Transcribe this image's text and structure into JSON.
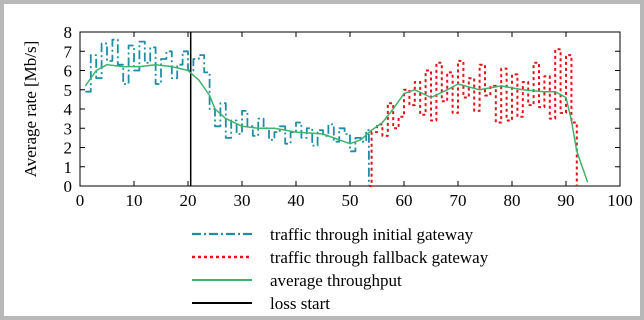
{
  "chart_data": {
    "type": "line",
    "title": "",
    "xlabel": "",
    "ylabel": "Average rate [Mb/s]",
    "xlim": [
      0,
      100
    ],
    "ylim": [
      0,
      8
    ],
    "xticks": [
      0,
      10,
      20,
      30,
      40,
      50,
      60,
      70,
      80,
      90,
      100
    ],
    "yticks": [
      0,
      1,
      2,
      3,
      4,
      5,
      6,
      7,
      8
    ],
    "grid": false,
    "legend_position": "below",
    "colors": {
      "initial": "#1f8ea3",
      "fallback": "#e3121b",
      "average": "#3fb36b",
      "loss": "#000000"
    },
    "series": [
      {
        "name": "traffic through initial gateway",
        "style": "dash-dot",
        "x": [
          1,
          2,
          3,
          4,
          5,
          6,
          7,
          8,
          9,
          10,
          11,
          12,
          13,
          14,
          15,
          16,
          17,
          18,
          19,
          20,
          21,
          22,
          23,
          24,
          25,
          26,
          27,
          28,
          29,
          30,
          31,
          32,
          33,
          34,
          35,
          36,
          37,
          38,
          39,
          40,
          41,
          42,
          43,
          44,
          45,
          46,
          47,
          48,
          49,
          50,
          51,
          52,
          53,
          53.5
        ],
        "values": [
          4.9,
          6.8,
          5.6,
          7.4,
          6.5,
          7.6,
          6.3,
          5.3,
          7.3,
          6.0,
          7.5,
          6.4,
          7.2,
          5.3,
          6.6,
          7.0,
          5.6,
          6.3,
          7.0,
          6.0,
          6.6,
          6.8,
          5.9,
          4.0,
          3.1,
          4.3,
          2.5,
          3.4,
          2.7,
          3.9,
          3.1,
          2.6,
          3.5,
          3.0,
          2.4,
          2.8,
          3.1,
          2.2,
          2.8,
          3.3,
          2.5,
          3.0,
          2.1,
          2.9,
          2.6,
          3.2,
          2.3,
          3.0,
          2.7,
          1.8,
          2.5,
          2.3,
          2.9,
          0
        ]
      },
      {
        "name": "traffic through fallback gateway",
        "style": "dotted",
        "x": [
          53.5,
          54,
          55,
          56,
          57,
          58,
          59,
          60,
          61,
          62,
          63,
          64,
          65,
          66,
          67,
          68,
          69,
          70,
          71,
          72,
          73,
          74,
          75,
          76,
          77,
          78,
          79,
          80,
          81,
          82,
          83,
          84,
          85,
          86,
          87,
          88,
          89,
          90,
          91,
          92
        ],
        "values": [
          0,
          2.8,
          3.2,
          2.6,
          4.3,
          3.0,
          3.6,
          5.0,
          4.2,
          5.4,
          3.7,
          6.0,
          3.4,
          6.4,
          4.4,
          5.9,
          3.8,
          6.5,
          4.6,
          5.6,
          3.9,
          6.3,
          4.7,
          5.2,
          3.3,
          6.1,
          3.4,
          5.8,
          3.6,
          5.4,
          4.2,
          6.4,
          4.1,
          5.7,
          3.5,
          7.1,
          3.8,
          6.8,
          3.3,
          0
        ]
      },
      {
        "name": "average throughput",
        "style": "solid",
        "x": [
          1,
          3,
          5,
          8,
          11,
          14,
          17,
          20,
          22,
          24,
          25,
          27,
          30,
          33,
          36,
          40,
          45,
          50,
          52,
          54,
          56,
          58,
          60,
          62,
          65,
          68,
          70,
          74,
          78,
          82,
          86,
          88,
          90,
          91,
          92,
          94
        ],
        "values": [
          5.2,
          6.0,
          6.3,
          6.2,
          6.2,
          6.3,
          6.2,
          6.0,
          5.5,
          4.7,
          4.0,
          3.5,
          3.1,
          3.0,
          3.0,
          2.8,
          2.7,
          2.2,
          2.4,
          2.9,
          3.3,
          4.0,
          4.8,
          5.0,
          4.6,
          5.0,
          5.3,
          5.0,
          5.2,
          5.0,
          4.9,
          4.9,
          4.6,
          3.4,
          1.8,
          0.2
        ]
      },
      {
        "name": "loss start",
        "style": "solid-vertical",
        "x": [
          20.5,
          20.5
        ],
        "values": [
          0,
          8
        ]
      }
    ]
  }
}
